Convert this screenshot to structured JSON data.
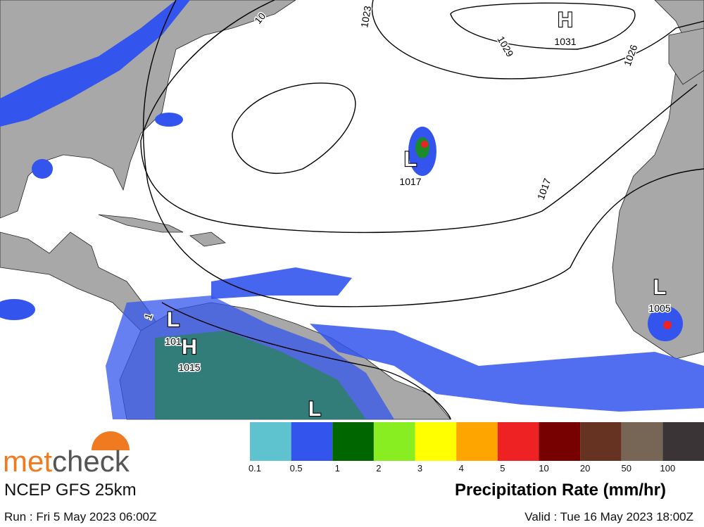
{
  "map": {
    "centers": [
      {
        "symbol": "H",
        "pressure": "1031"
      },
      {
        "symbol": "L",
        "pressure": "1017"
      },
      {
        "symbol": "L",
        "pressure": "1005"
      },
      {
        "symbol": "L",
        "pressure": "101"
      },
      {
        "symbol": "H",
        "pressure": "1015"
      },
      {
        "symbol": "L"
      }
    ],
    "isobar_labels": [
      "1023",
      "1029",
      "1026",
      "1017",
      "10",
      "1"
    ]
  },
  "legend": {
    "title": "Precipitation Rate (mm/hr)",
    "colors": [
      "#5fc3cf",
      "#3355ee",
      "#006600",
      "#88ee22",
      "#ffff00",
      "#ffa500",
      "#ee2222",
      "#770000",
      "#663322",
      "#776655",
      "#3a3436"
    ],
    "ticks": [
      "0.1",
      "0.5",
      "1",
      "2",
      "3",
      "4",
      "5",
      "10",
      "20",
      "50",
      "100"
    ]
  },
  "brand": {
    "logo": [
      "met",
      "check"
    ],
    "model": "NCEP GFS 25km"
  },
  "run": "Run : Fri 5 May 2023 06:00Z",
  "valid": "Valid : Tue 16 May 2023 18:00Z"
}
